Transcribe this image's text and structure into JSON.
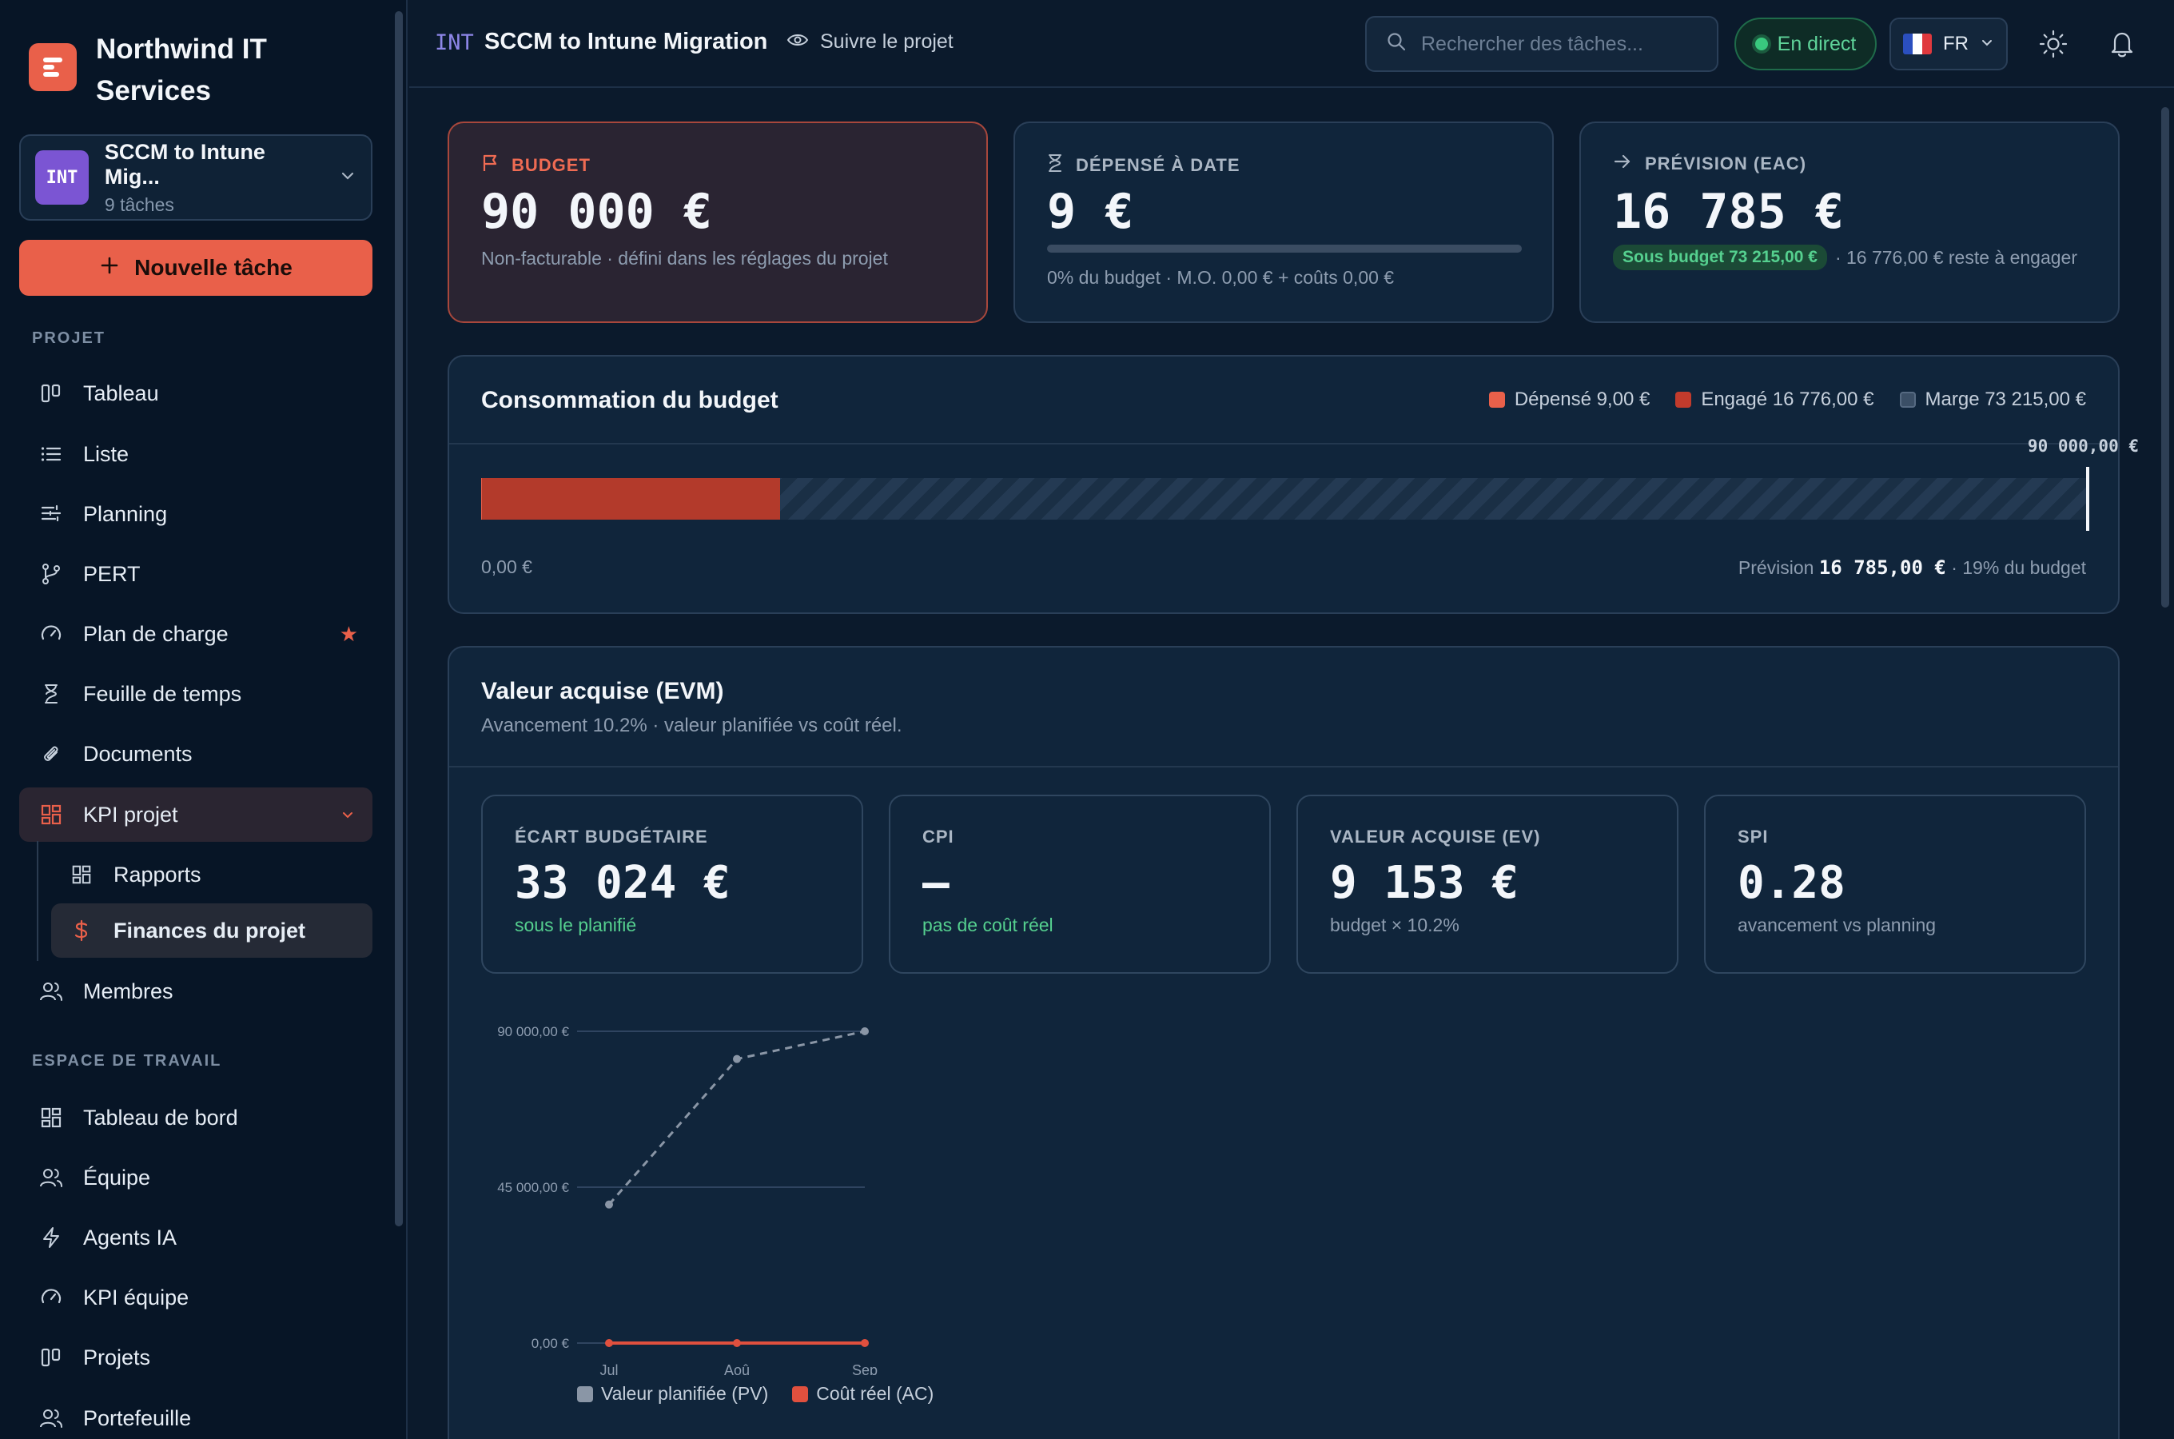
{
  "brand": {
    "name": "Northwind IT Services",
    "logo_icon": "logo-icon"
  },
  "project_switcher": {
    "code": "INT",
    "name": "SCCM to Intune Mig...",
    "subtitle": "9 tâches"
  },
  "new_task": {
    "label": "Nouvelle tâche"
  },
  "sidebar": {
    "project_section": "PROJET",
    "project_items": [
      {
        "label": "Tableau",
        "icon": "board-icon"
      },
      {
        "label": "Liste",
        "icon": "list-icon"
      },
      {
        "label": "Planning",
        "icon": "planning-icon"
      },
      {
        "label": "PERT",
        "icon": "branch-icon"
      },
      {
        "label": "Plan de charge",
        "icon": "gauge-icon",
        "starred": true
      },
      {
        "label": "Feuille de temps",
        "icon": "hourglass-icon"
      },
      {
        "label": "Documents",
        "icon": "paperclip-icon"
      },
      {
        "label": "KPI projet",
        "icon": "dashboard-icon",
        "expanded": true
      }
    ],
    "kpi_sub_items": [
      {
        "label": "Rapports",
        "icon": "dashboard-icon"
      },
      {
        "label": "Finances du projet",
        "icon": "dollar-icon",
        "current": true
      }
    ],
    "members": {
      "label": "Membres",
      "icon": "users-icon"
    },
    "workspace_section": "ESPACE DE TRAVAIL",
    "workspace_items": [
      {
        "label": "Tableau de bord",
        "icon": "dashboard-icon"
      },
      {
        "label": "Équipe",
        "icon": "users-icon"
      },
      {
        "label": "Agents IA",
        "icon": "bolt-icon"
      },
      {
        "label": "KPI équipe",
        "icon": "gauge-icon"
      },
      {
        "label": "Projets",
        "icon": "board-icon"
      },
      {
        "label": "Portefeuille",
        "icon": "users-icon"
      }
    ]
  },
  "topbar": {
    "project_code": "INT",
    "project_title": "SCCM to Intune Migration",
    "follow_label": "Suivre le projet",
    "search_placeholder": "Rechercher des tâches...",
    "live_label": "En direct",
    "language": "FR"
  },
  "stats": {
    "budget": {
      "label": "BUDGET",
      "value": "90 000 €",
      "note": "Non-facturable · défini dans les réglages du projet"
    },
    "spent": {
      "label": "DÉPENSÉ À DATE",
      "value": "9 €",
      "progress_percent": 0,
      "note": "0% du budget · M.O. 0,00 € + coûts 0,00 €"
    },
    "forecast": {
      "label": "PRÉVISION (EAC)",
      "value": "16 785 €",
      "badge": "Sous budget 73 215,00 €",
      "note": "· 16 776,00 € reste à engager"
    }
  },
  "consumption": {
    "title": "Consommation du budget",
    "legend": [
      {
        "label": "Dépensé 9,00 €",
        "color": "#e9604a"
      },
      {
        "label": "Engagé 16 776,00 €",
        "color": "#c23b2c"
      },
      {
        "label": "Marge 73 215,00 €",
        "color": "#3b4f66"
      }
    ],
    "budget_cap_label": "90 000,00 €",
    "spent_fraction": 0.0001,
    "committed_fraction": 0.1864,
    "min_label": "0,00 €",
    "forecast_prefix": "Prévision",
    "forecast_value": "16 785,00 €",
    "forecast_suffix": "· 19% du budget"
  },
  "evm": {
    "title": "Valeur acquise (EVM)",
    "subtitle": "Avancement 10.2% · valeur planifiée vs coût réel.",
    "kpis": [
      {
        "label": "ÉCART BUDGÉTAIRE",
        "value": "33 024 €",
        "note": "sous le planifié",
        "note_color": "green"
      },
      {
        "label": "CPI",
        "value": "—",
        "note": "pas de coût réel",
        "note_color": "green"
      },
      {
        "label": "VALEUR ACQUISE (EV)",
        "value": "9 153 €",
        "note": "budget × 10.2%",
        "note_color": "muted"
      },
      {
        "label": "SPI",
        "value": "0.28",
        "note": "avancement vs planning",
        "note_color": "muted"
      }
    ]
  },
  "chart_data": {
    "type": "line",
    "categories": [
      "Jul",
      "Aoû",
      "Sep"
    ],
    "y_ticks": [
      {
        "value": 90000,
        "label": "90 000,00 €"
      },
      {
        "value": 45000,
        "label": "45 000,00 €"
      },
      {
        "value": 0,
        "label": "0,00 €"
      }
    ],
    "ylim": [
      0,
      90000
    ],
    "grid": true,
    "legend_position": "bottom",
    "series": [
      {
        "name": "Valeur planifiée (PV)",
        "values": [
          40000,
          82000,
          90000
        ],
        "color": "#8a96a6",
        "dashed": true
      },
      {
        "name": "Coût réel (AC)",
        "values": [
          0,
          0,
          9
        ],
        "color": "#e0503e",
        "dashed": false
      }
    ]
  }
}
